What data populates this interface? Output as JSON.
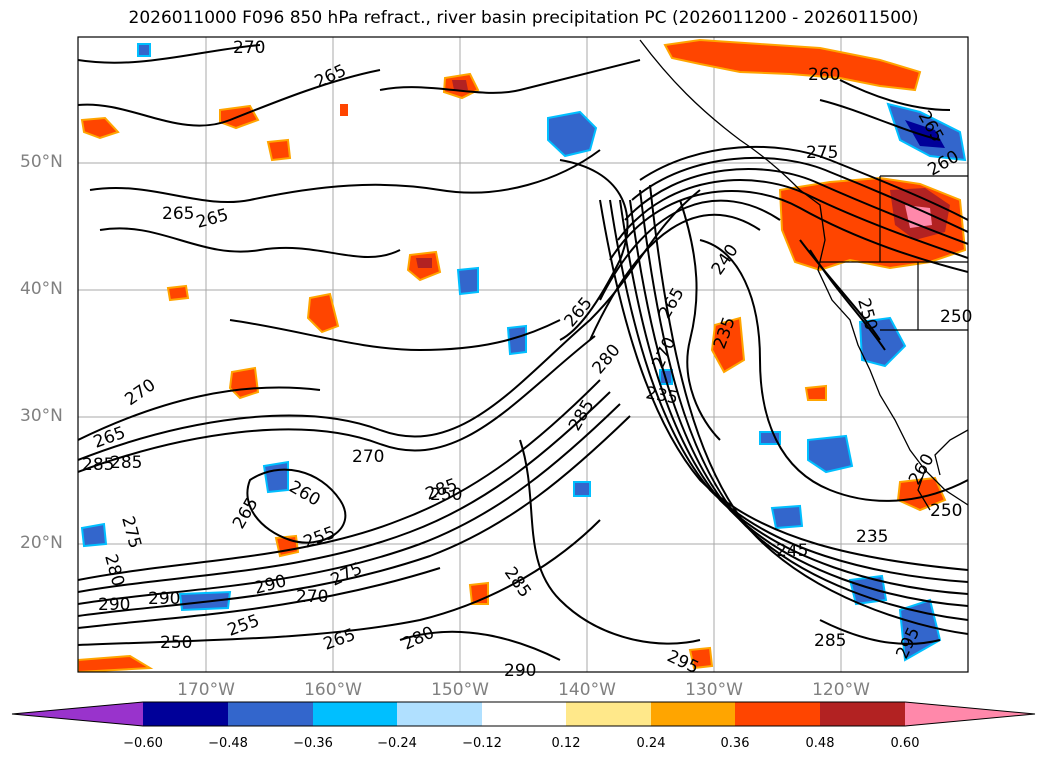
{
  "title": "2026011000 F096 850 hPa refract., river basin precipitation PC (2026011200 - 2026011500)",
  "lat_labels": [
    "50°N",
    "40°N",
    "30°N",
    "20°N"
  ],
  "lon_labels": [
    "170°W",
    "160°W",
    "150°W",
    "140°W",
    "130°W",
    "120°W"
  ],
  "contour_labels": [
    "270",
    "265",
    "265",
    "265",
    "260",
    "265",
    "275",
    "260",
    "265",
    "240",
    "265",
    "285",
    "280",
    "270",
    "235",
    "235",
    "285",
    "270",
    "265",
    "285",
    "270",
    "265",
    "260",
    "255",
    "250",
    "280",
    "275",
    "285",
    "275",
    "290",
    "290",
    "270",
    "255",
    "265",
    "250",
    "280",
    "290",
    "295",
    "285",
    "290",
    "295",
    "245",
    "235",
    "285",
    "260",
    "250",
    "250",
    "250"
  ],
  "colorbar": {
    "colors": [
      "#9933cc",
      "#000099",
      "#3366cc",
      "#00bfff",
      "#b0e0ff",
      "#ffffff",
      "#ffe88a",
      "#ffa500",
      "#ff4500",
      "#b22222",
      "#ff88aa"
    ],
    "tick_labels": [
      "−0.60",
      "−0.48",
      "−0.36",
      "−0.24",
      "−0.12",
      "0.12",
      "0.24",
      "0.36",
      "0.48",
      "0.60"
    ]
  }
}
